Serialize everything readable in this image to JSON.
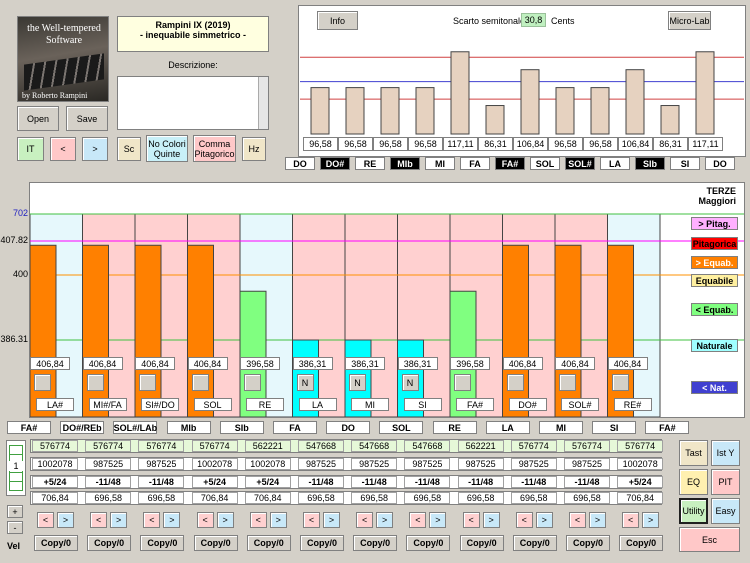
{
  "logo": {
    "line1": "the Well-tempered",
    "line2": "Software",
    "author": "by Roberto Rampini"
  },
  "title": {
    "line1": "Rampini IX (2019)",
    "line2": "- inequabile simmetrico -"
  },
  "description_label": "Descrizione:",
  "buttons": {
    "open": "Open",
    "save": "Save",
    "it": "IT",
    "prev": "<",
    "next": ">",
    "sc": "Sc",
    "no_colori_1": "No Colori",
    "no_colori_2": "Quinte",
    "comma_1": "Comma",
    "comma_2": "Pitagorico",
    "hz": "Hz",
    "info": "Info",
    "micro_lab": "Micro-Lab",
    "tast": "Tast",
    "ist_y": "Ist Y",
    "eq": "EQ",
    "pit": "PIT",
    "utility": "Utility",
    "easy": "Easy",
    "esc": "Esc",
    "plus": "+",
    "minus": "-",
    "vel": "Vel",
    "lt": "<",
    "gt": ">",
    "copy": "Copy/0",
    "one": "1"
  },
  "scarto": {
    "label": "Scarto semitonale:",
    "value": "30,8",
    "unit": "Cents"
  },
  "top_chart": {
    "values": [
      96.58,
      96.58,
      96.58,
      96.58,
      117.11,
      86.31,
      106.84,
      96.58,
      96.58,
      106.84,
      86.31,
      117.11
    ],
    "value_labels": [
      "96,58",
      "96,58",
      "96,58",
      "96,58",
      "117,11",
      "86,31",
      "106,84",
      "96,58",
      "96,58",
      "106,84",
      "86,31",
      "117,11"
    ],
    "notes": [
      "DO",
      "DO#",
      "RE",
      "MIb",
      "MI",
      "FA",
      "FA#",
      "SOL",
      "SOL#",
      "LA",
      "SIb",
      "SI",
      "DO"
    ],
    "dark_notes": [
      false,
      true,
      false,
      true,
      false,
      false,
      true,
      false,
      true,
      false,
      true,
      false,
      false
    ],
    "ylim": [
      70,
      125
    ]
  },
  "thirds_chart": {
    "header": {
      "line1": "TERZE",
      "line2": "Maggiori"
    },
    "y_ticks": [
      "702",
      "407.82",
      "400",
      "386.31"
    ],
    "ylim": [
      360,
      720
    ],
    "legend": [
      "> Pitag.",
      "Pitagorica",
      "> Equab.",
      "Equabile",
      "< Equab.",
      "Naturale",
      "< Nat."
    ],
    "bar_values": [
      406.84,
      406.84,
      406.84,
      406.84,
      396.58,
      386.31,
      386.31,
      386.31,
      396.58,
      406.84,
      406.84,
      406.84
    ],
    "bar_labels": [
      "406,84",
      "406,84",
      "406,84",
      "406,84",
      "396,58",
      "386,31",
      "386,31",
      "386,31",
      "396,58",
      "406,84",
      "406,84",
      "406,84"
    ],
    "bar_colors": [
      "#ff8000",
      "#ff8000",
      "#ff8000",
      "#ff8000",
      "#80ff80",
      "#00ffff",
      "#00ffff",
      "#00ffff",
      "#80ff80",
      "#ff8000",
      "#ff8000",
      "#ff8000"
    ],
    "fifth_values": [
      702,
      702,
      702,
      702,
      702,
      702,
      702,
      702,
      702,
      702,
      702,
      702
    ],
    "fifth_colors": [
      "#e6f8fc",
      "#ffd0d0",
      "#ffd0d0",
      "#ffd0d0",
      "#e6f8fc",
      "#ffd0d0",
      "#ffd0d0",
      "#ffd0d0",
      "#ffd0d0",
      "#ffd0d0",
      "#ffd0d0",
      "#e6f8fc"
    ],
    "markers": [
      "",
      "",
      "",
      "",
      "",
      "N",
      "N",
      "N",
      "",
      "",
      "",
      ""
    ],
    "intervals": [
      "LA#",
      "MI#/FA",
      "SI#/DO",
      "SOL",
      "RE",
      "LA",
      "MI",
      "SI",
      "FA#",
      "DO#",
      "SOL#",
      "RE#"
    ]
  },
  "bottom": {
    "notes": [
      "FA#",
      "DO#/REb",
      "SOL#/LAb",
      "MIb",
      "SIb",
      "FA",
      "DO",
      "SOL",
      "RE",
      "LA",
      "MI",
      "SI",
      "FA#"
    ],
    "row1": [
      "576774",
      "576774",
      "576774",
      "576774",
      "562221",
      "547668",
      "547668",
      "547668",
      "562221",
      "576774",
      "576774",
      "576774"
    ],
    "row2": [
      "1002078",
      "987525",
      "987525",
      "1002078",
      "1002078",
      "987525",
      "987525",
      "987525",
      "987525",
      "987525",
      "987525",
      "1002078"
    ],
    "row3": [
      "+5/24",
      "-11/48",
      "-11/48",
      "+5/24",
      "+5/24",
      "-11/48",
      "-11/48",
      "-11/48",
      "-11/48",
      "-11/48",
      "-11/48",
      "+5/24"
    ],
    "row4": [
      "706,84",
      "696,58",
      "696,58",
      "706,84",
      "706,84",
      "696,58",
      "696,58",
      "696,58",
      "696,58",
      "696,58",
      "696,58",
      "706,84"
    ]
  }
}
